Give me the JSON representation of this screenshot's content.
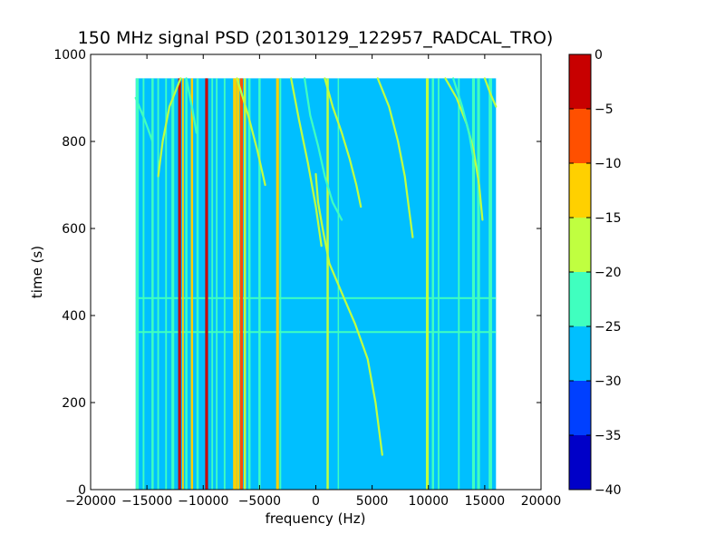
{
  "chart_data": {
    "type": "heatmap",
    "title": "150 MHz signal PSD (20130129_122957_RADCAL_TRO)",
    "xlabel": "frequency (Hz)",
    "ylabel": "time (s)",
    "xlim": [
      -20000,
      20000
    ],
    "ylim": [
      0,
      1000
    ],
    "x_ticks": [
      -20000,
      -15000,
      -10000,
      -5000,
      0,
      5000,
      10000,
      15000,
      20000
    ],
    "x_tick_labels": [
      "−20000",
      "−15000",
      "−10000",
      "−5000",
      "0",
      "5000",
      "10000",
      "15000",
      "20000"
    ],
    "y_ticks": [
      0,
      200,
      400,
      600,
      800,
      1000
    ],
    "y_tick_labels": [
      "0",
      "200",
      "400",
      "600",
      "800",
      "1000"
    ],
    "data_extent": {
      "x": [
        -16000,
        16000
      ],
      "y": [
        0,
        945
      ]
    },
    "background_level": -27.5,
    "colorbar": {
      "levels": [
        -40,
        -35,
        -30,
        -25,
        -20,
        -15,
        -10,
        -5,
        0
      ],
      "tick_labels": [
        "−40",
        "−35",
        "−30",
        "−25",
        "−20",
        "−15",
        "−10",
        "−5",
        "0"
      ],
      "colors": [
        "#0000c8",
        "#0040ff",
        "#00bfff",
        "#40ffbf",
        "#c0ff40",
        "#ffd000",
        "#ff5000",
        "#c80000"
      ]
    },
    "vertical_lines": [
      {
        "x": -15850,
        "level": -22.5,
        "width_hz": 250
      },
      {
        "x": -15300,
        "level": -22.5,
        "width_hz": 150
      },
      {
        "x": -14500,
        "level": -22.5,
        "width_hz": 200
      },
      {
        "x": -14000,
        "level": -22.5,
        "width_hz": 150
      },
      {
        "x": -13300,
        "level": -22.5,
        "width_hz": 150
      },
      {
        "x": -12700,
        "level": -22.5,
        "width_hz": 250
      },
      {
        "x": -12100,
        "level": -2.5,
        "width_hz": 250
      },
      {
        "x": -11800,
        "level": -12.5,
        "width_hz": 150
      },
      {
        "x": -11500,
        "level": -22.5,
        "width_hz": 200
      },
      {
        "x": -11000,
        "level": -12.5,
        "width_hz": 200
      },
      {
        "x": -10500,
        "level": -22.5,
        "width_hz": 200
      },
      {
        "x": -9700,
        "level": -2.5,
        "width_hz": 250
      },
      {
        "x": -9200,
        "level": -22.5,
        "width_hz": 150
      },
      {
        "x": -8800,
        "level": -22.5,
        "width_hz": 150
      },
      {
        "x": -8100,
        "level": -22.5,
        "width_hz": 150
      },
      {
        "x": -7200,
        "level": -12.5,
        "width_hz": 300
      },
      {
        "x": -6900,
        "level": -12.5,
        "width_hz": 250
      },
      {
        "x": -6600,
        "level": -7.5,
        "width_hz": 250
      },
      {
        "x": -6300,
        "level": -17.5,
        "width_hz": 200
      },
      {
        "x": -5900,
        "level": -22.5,
        "width_hz": 200
      },
      {
        "x": -5000,
        "level": -22.5,
        "width_hz": 200
      },
      {
        "x": -3400,
        "level": -12.5,
        "width_hz": 250
      },
      {
        "x": -3150,
        "level": -22.5,
        "width_hz": 150
      },
      {
        "x": 1050,
        "level": -17.5,
        "width_hz": 200
      },
      {
        "x": 2000,
        "level": -22.5,
        "width_hz": 120
      },
      {
        "x": 9900,
        "level": -17.5,
        "width_hz": 250
      },
      {
        "x": 10400,
        "level": -22.5,
        "width_hz": 200
      },
      {
        "x": 10900,
        "level": -22.5,
        "width_hz": 150
      },
      {
        "x": 12700,
        "level": -22.5,
        "width_hz": 150
      },
      {
        "x": 14000,
        "level": -22.5,
        "width_hz": 250
      },
      {
        "x": 14450,
        "level": -22.5,
        "width_hz": 250
      },
      {
        "x": 15500,
        "level": -22.5,
        "width_hz": 300
      }
    ],
    "sweep_tracks": [
      {
        "level": -17.5,
        "points": [
          [
            0,
            725
          ],
          [
            200,
            660
          ],
          [
            600,
            600
          ],
          [
            1200,
            520
          ],
          [
            2500,
            440
          ],
          [
            3500,
            380
          ],
          [
            4600,
            300
          ],
          [
            5300,
            200
          ],
          [
            5700,
            120
          ],
          [
            5900,
            80
          ]
        ]
      },
      {
        "level": -17.5,
        "points": [
          [
            -7000,
            945
          ],
          [
            -6000,
            860
          ],
          [
            -5200,
            780
          ],
          [
            -4500,
            700
          ]
        ]
      },
      {
        "level": -17.5,
        "points": [
          [
            -2200,
            945
          ],
          [
            -1500,
            850
          ],
          [
            -700,
            750
          ],
          [
            0,
            650
          ],
          [
            500,
            560
          ]
        ]
      },
      {
        "level": -17.5,
        "points": [
          [
            -12000,
            945
          ],
          [
            -13000,
            880
          ],
          [
            -13600,
            800
          ],
          [
            -14000,
            720
          ]
        ]
      },
      {
        "level": -22.5,
        "points": [
          [
            -1000,
            945
          ],
          [
            -500,
            860
          ],
          [
            200,
            790
          ],
          [
            800,
            720
          ],
          [
            1500,
            660
          ],
          [
            2300,
            620
          ]
        ]
      },
      {
        "level": -17.5,
        "points": [
          [
            800,
            945
          ],
          [
            1500,
            880
          ],
          [
            2300,
            820
          ],
          [
            3000,
            760
          ],
          [
            3600,
            700
          ],
          [
            4000,
            650
          ]
        ]
      },
      {
        "level": -17.5,
        "points": [
          [
            5500,
            945
          ],
          [
            6500,
            880
          ],
          [
            7300,
            800
          ],
          [
            7900,
            720
          ],
          [
            8300,
            640
          ],
          [
            8600,
            580
          ]
        ]
      },
      {
        "level": -17.5,
        "points": [
          [
            11500,
            945
          ],
          [
            12500,
            900
          ],
          [
            13400,
            840
          ],
          [
            14000,
            780
          ],
          [
            14500,
            700
          ],
          [
            14800,
            620
          ]
        ]
      },
      {
        "level": -22.5,
        "points": [
          [
            12200,
            945
          ],
          [
            13000,
            880
          ],
          [
            13600,
            820
          ],
          [
            14000,
            760
          ]
        ]
      },
      {
        "level": -17.5,
        "points": [
          [
            15000,
            945
          ],
          [
            15500,
            910
          ],
          [
            16000,
            880
          ]
        ]
      },
      {
        "level": -22.5,
        "points": [
          [
            -16000,
            900
          ],
          [
            -15200,
            850
          ],
          [
            -14500,
            800
          ]
        ]
      },
      {
        "level": -22.5,
        "points": [
          [
            -11500,
            945
          ],
          [
            -11000,
            880
          ],
          [
            -10600,
            820
          ]
        ]
      }
    ],
    "horizontal_lines": [
      {
        "y": 440,
        "level": -22.5
      },
      {
        "y": 362,
        "level": -22.5
      }
    ]
  }
}
